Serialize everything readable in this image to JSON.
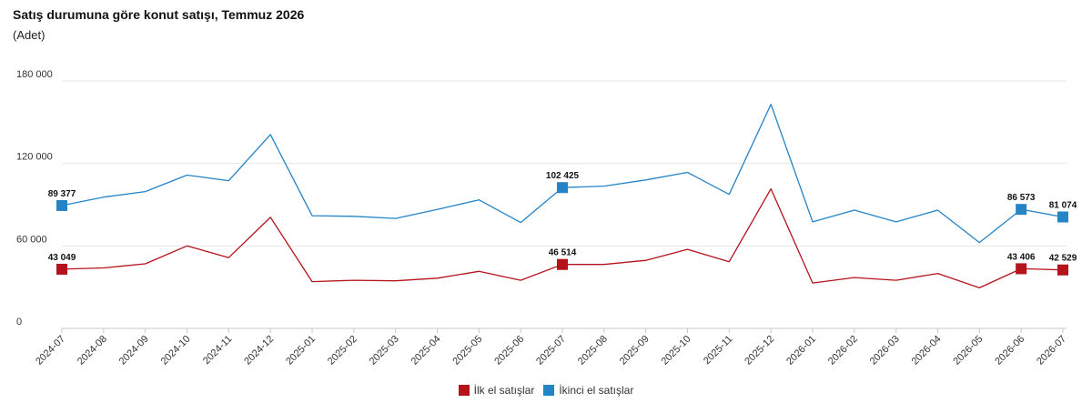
{
  "title": "Satış durumuna göre konut satışı, Temmuz 2026",
  "subtitle": "(Adet)",
  "chart_data": {
    "type": "line",
    "title": "Satış durumuna göre konut satışı, Temmuz 2026",
    "subtitle": "(Adet)",
    "xlabel": "",
    "ylabel": "",
    "ylim": [
      0,
      180000
    ],
    "yticks": [
      0,
      60000,
      120000,
      180000
    ],
    "ytick_labels": [
      "0",
      "60 000",
      "120 000",
      "180 000"
    ],
    "grid": "horizontal",
    "legend_position": "bottom-center",
    "categories": [
      "2024-07",
      "2024-08",
      "2024-09",
      "2024-10",
      "2024-11",
      "2024-12",
      "2025-01",
      "2025-02",
      "2025-03",
      "2025-04",
      "2025-05",
      "2025-06",
      "2025-07",
      "2025-08",
      "2025-09",
      "2025-10",
      "2025-11",
      "2025-12",
      "2026-01",
      "2026-02",
      "2026-03",
      "2026-04",
      "2026-05",
      "2026-06",
      "2026-07"
    ],
    "series": [
      {
        "name": "İlk el satışlar",
        "color": "#b5121b",
        "values": [
          43049,
          44000,
          47000,
          60000,
          51500,
          80800,
          34000,
          35000,
          34600,
          36500,
          41500,
          35000,
          46514,
          46500,
          49500,
          57500,
          48500,
          101500,
          33000,
          37000,
          35000,
          40000,
          29500,
          43406,
          42529
        ],
        "labels": [
          {
            "index": 0,
            "text": "43 049"
          },
          {
            "index": 12,
            "text": "46 514"
          },
          {
            "index": 23,
            "text": "43 406"
          },
          {
            "index": 24,
            "text": "42 529"
          }
        ]
      },
      {
        "name": "İkinci el satışlar",
        "color": "#2484c6",
        "values": [
          89377,
          95500,
          99500,
          111500,
          107500,
          141000,
          82000,
          81500,
          80000,
          86500,
          93500,
          77000,
          102425,
          103500,
          108000,
          113500,
          97500,
          163000,
          77500,
          86000,
          77500,
          86000,
          62500,
          86573,
          81074
        ],
        "labels": [
          {
            "index": 0,
            "text": "89 377"
          },
          {
            "index": 12,
            "text": "102 425"
          },
          {
            "index": 23,
            "text": "86 573"
          },
          {
            "index": 24,
            "text": "81 074"
          }
        ]
      }
    ]
  }
}
